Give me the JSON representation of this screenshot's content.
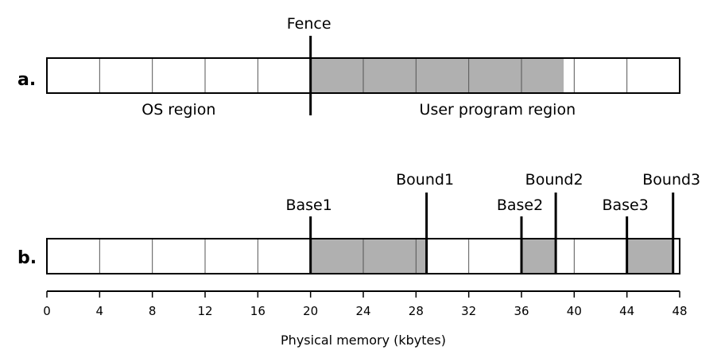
{
  "diagram": {
    "panel_a": {
      "row_label": "a.",
      "fence_label": "Fence",
      "os_region_label": "OS region",
      "user_region_label": "User program region",
      "fence_at": 20,
      "shaded": [
        [
          20,
          39.2
        ]
      ]
    },
    "panel_b": {
      "row_label": "b.",
      "markers": [
        {
          "name": "Base1",
          "at": 20,
          "kind": "base"
        },
        {
          "name": "Bound1",
          "at": 28.8,
          "kind": "bound"
        },
        {
          "name": "Base2",
          "at": 36,
          "kind": "base"
        },
        {
          "name": "Bound2",
          "at": 38.6,
          "kind": "bound"
        },
        {
          "name": "Base3",
          "at": 44,
          "kind": "base"
        },
        {
          "name": "Bound3",
          "at": 47.5,
          "kind": "bound"
        }
      ],
      "shaded": [
        [
          20,
          28.8
        ],
        [
          36,
          38.6
        ],
        [
          44,
          47.5
        ]
      ]
    },
    "axis": {
      "label": "Physical memory (kbytes)",
      "min": 0,
      "max": 48,
      "ticks": [
        "0",
        "4",
        "8",
        "12",
        "16",
        "20",
        "24",
        "28",
        "32",
        "36",
        "40",
        "44",
        "48"
      ]
    },
    "colors": {
      "shade": "#b0b0b0",
      "line": "#000000",
      "cell_divider": "#555555"
    }
  }
}
